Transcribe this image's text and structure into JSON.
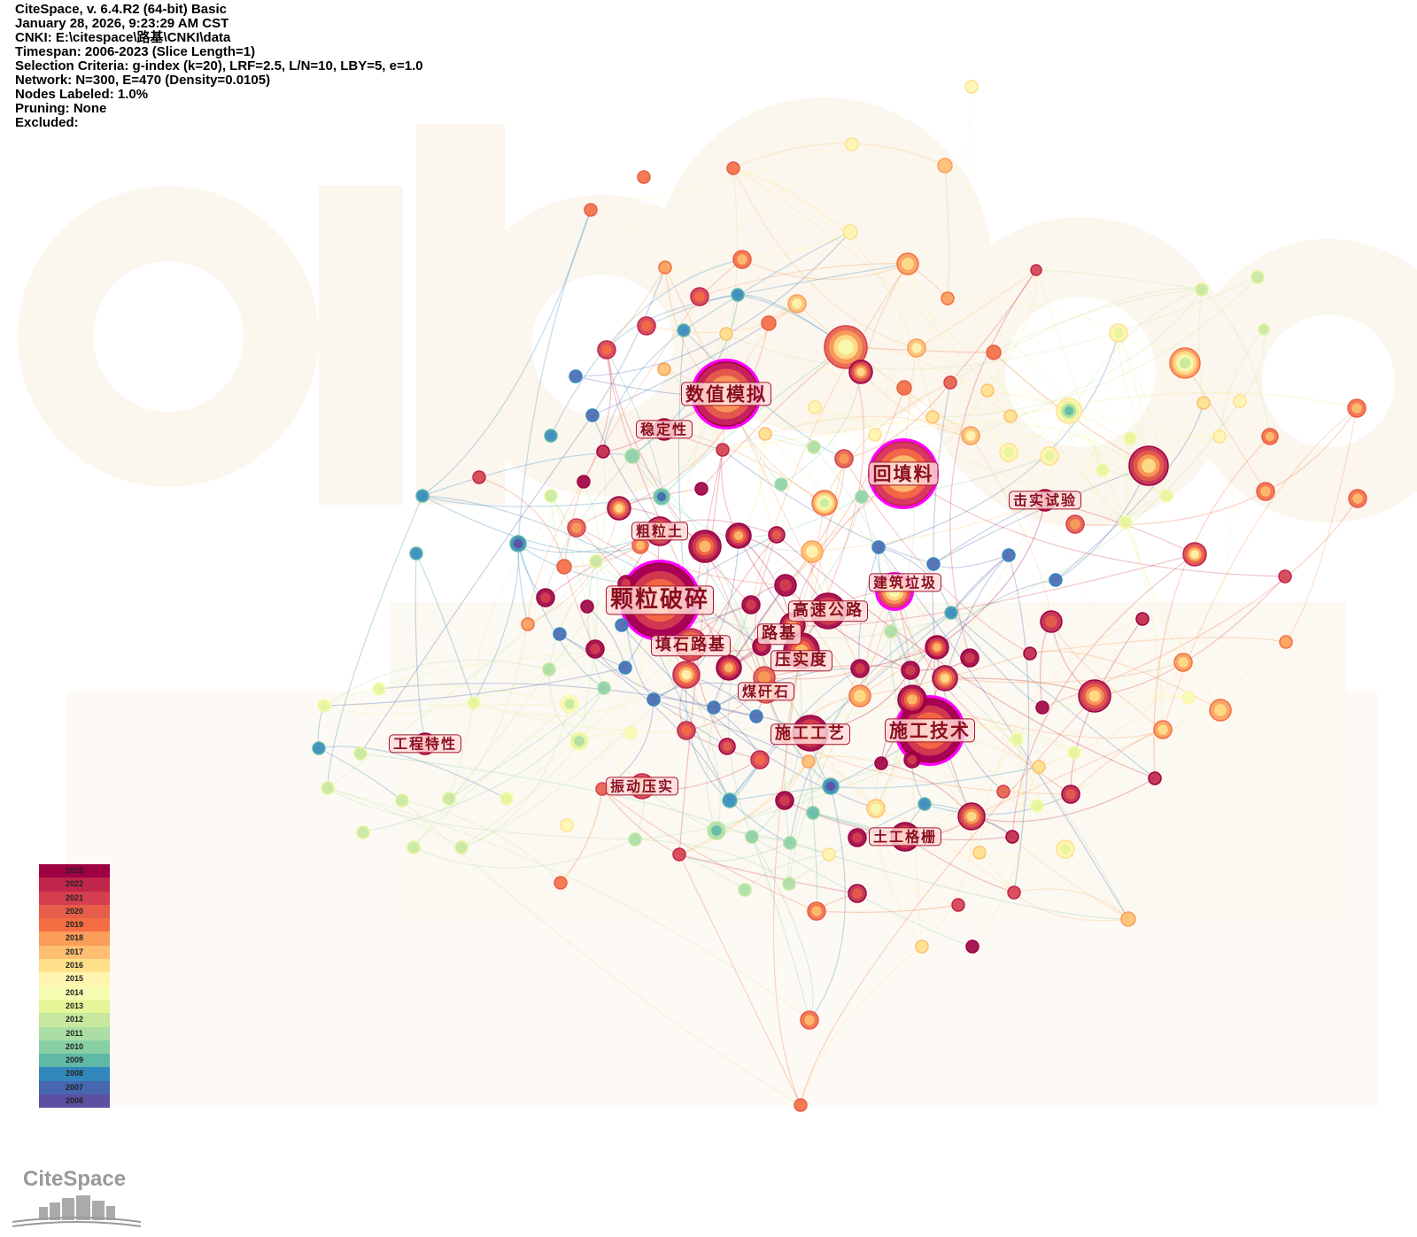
{
  "info": {
    "lines": [
      "CiteSpace, v. 6.4.R2 (64-bit) Basic",
      "January 28, 2026, 9:23:29 AM CST",
      "CNKI: E:\\citespace\\路基\\CNKI\\data",
      "Timespan: 2006-2023 (Slice Length=1)",
      "Selection Criteria: g-index (k=20), LRF=2.5, L/N=10, LBY=5, e=1.0",
      "Network: N=300, E=470 (Density=0.0105)",
      "Nodes Labeled: 1.0%",
      "Pruning: None",
      "Excluded:"
    ]
  },
  "keywords": [
    {
      "label": "颗粒破碎",
      "year_index": 0,
      "size": "xl"
    },
    {
      "label": "数值模拟",
      "year_index": 1,
      "size": "l"
    },
    {
      "label": "回填料",
      "year_index": 2,
      "size": "l"
    },
    {
      "label": "施工技术",
      "year_index": 3,
      "size": "l"
    },
    {
      "label": "稳定性",
      "year_index": 4,
      "size": "s"
    },
    {
      "label": "粗粒土",
      "year_index": 5,
      "size": "s"
    },
    {
      "label": "高速公路",
      "year_index": 6,
      "size": "m"
    },
    {
      "label": "建筑垃圾",
      "year_index": 7,
      "size": "s"
    },
    {
      "label": "路基",
      "year_index": 8,
      "size": "m"
    },
    {
      "label": "压实度",
      "year_index": 9,
      "size": "m"
    },
    {
      "label": "填石路基",
      "year_index": 10,
      "size": "m"
    },
    {
      "label": "煤矸石",
      "year_index": 11,
      "size": "s"
    },
    {
      "label": "施工工艺",
      "year_index": 12,
      "size": "m"
    },
    {
      "label": "工程特性",
      "year_index": 13,
      "size": "s"
    },
    {
      "label": "振动压实",
      "year_index": 14,
      "size": "s"
    },
    {
      "label": "击实试验",
      "year_index": 15,
      "size": "s"
    },
    {
      "label": "土工格栅",
      "year_index": 16,
      "size": "s"
    }
  ],
  "legend": {
    "years": [
      "2023",
      "2022",
      "2021",
      "2020",
      "2019",
      "2018",
      "2017",
      "2016",
      "2015",
      "2014",
      "2013",
      "2012",
      "2011",
      "2010",
      "2009",
      "2008",
      "2007",
      "2006"
    ],
    "colors": [
      "#9e0142",
      "#c0254a",
      "#d53e4f",
      "#e65e4a",
      "#f46d43",
      "#f99d59",
      "#fdbf6f",
      "#fee08b",
      "#fff5b0",
      "#f5fbb0",
      "#e6f598",
      "#c7e89e",
      "#abdda4",
      "#89cfa4",
      "#5fb9a6",
      "#3288bd",
      "#4767b0",
      "#5e4fa2"
    ]
  },
  "logo": {
    "text": "CiteSpace"
  },
  "accent": "#ff00ff"
}
